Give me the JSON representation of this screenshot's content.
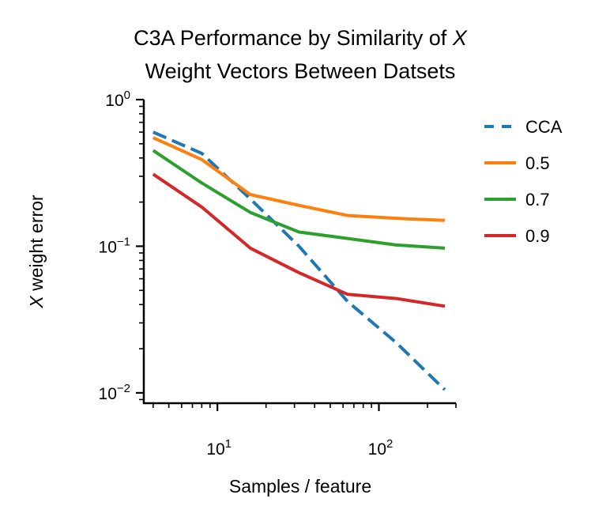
{
  "chart_data": {
    "type": "line",
    "title": "C3A Performance by Similarity of X Weight Vectors Between Datsets",
    "title_lines": [
      {
        "before": "C3A Performance by Similarity of ",
        "var": "X"
      },
      {
        "before": "Weight Vectors Between Datsets",
        "var": ""
      }
    ],
    "xlabel": "Samples / feature",
    "ylabel": "X weight error",
    "ylabel_parts": {
      "var": "X",
      "rest": " weight error"
    },
    "xscale": "log",
    "yscale": "log",
    "xlim": [
      3.5,
      300
    ],
    "ylim": [
      0.0085,
      1
    ],
    "x_major_ticks": [
      {
        "value": 10,
        "base": "10",
        "exp": "1"
      },
      {
        "value": 100,
        "base": "10",
        "exp": "2"
      }
    ],
    "y_major_ticks": [
      {
        "value": 0.01,
        "base": "10",
        "exp": "−2"
      },
      {
        "value": 0.1,
        "base": "10",
        "exp": "−1"
      },
      {
        "value": 1,
        "base": "10",
        "exp": "0"
      }
    ],
    "x": [
      4,
      8,
      16,
      32,
      64,
      128,
      256
    ],
    "series": [
      {
        "name": "CCA",
        "color": "#1f77b4",
        "style": "dashed",
        "values": [
          0.6,
          0.43,
          0.21,
          0.1,
          0.042,
          0.022,
          0.0105
        ]
      },
      {
        "name": "0.5",
        "color": "#ff7f0e",
        "style": "solid",
        "values": [
          0.55,
          0.39,
          0.225,
          0.19,
          0.162,
          0.155,
          0.15
        ]
      },
      {
        "name": "0.7",
        "color": "#2ca02c",
        "style": "solid",
        "values": [
          0.45,
          0.27,
          0.17,
          0.125,
          0.113,
          0.102,
          0.097
        ]
      },
      {
        "name": "0.9",
        "color": "#d62728",
        "style": "solid",
        "values": [
          0.31,
          0.185,
          0.097,
          0.066,
          0.047,
          0.044,
          0.039
        ]
      }
    ],
    "legend_position": "outside-right",
    "grid": false
  }
}
